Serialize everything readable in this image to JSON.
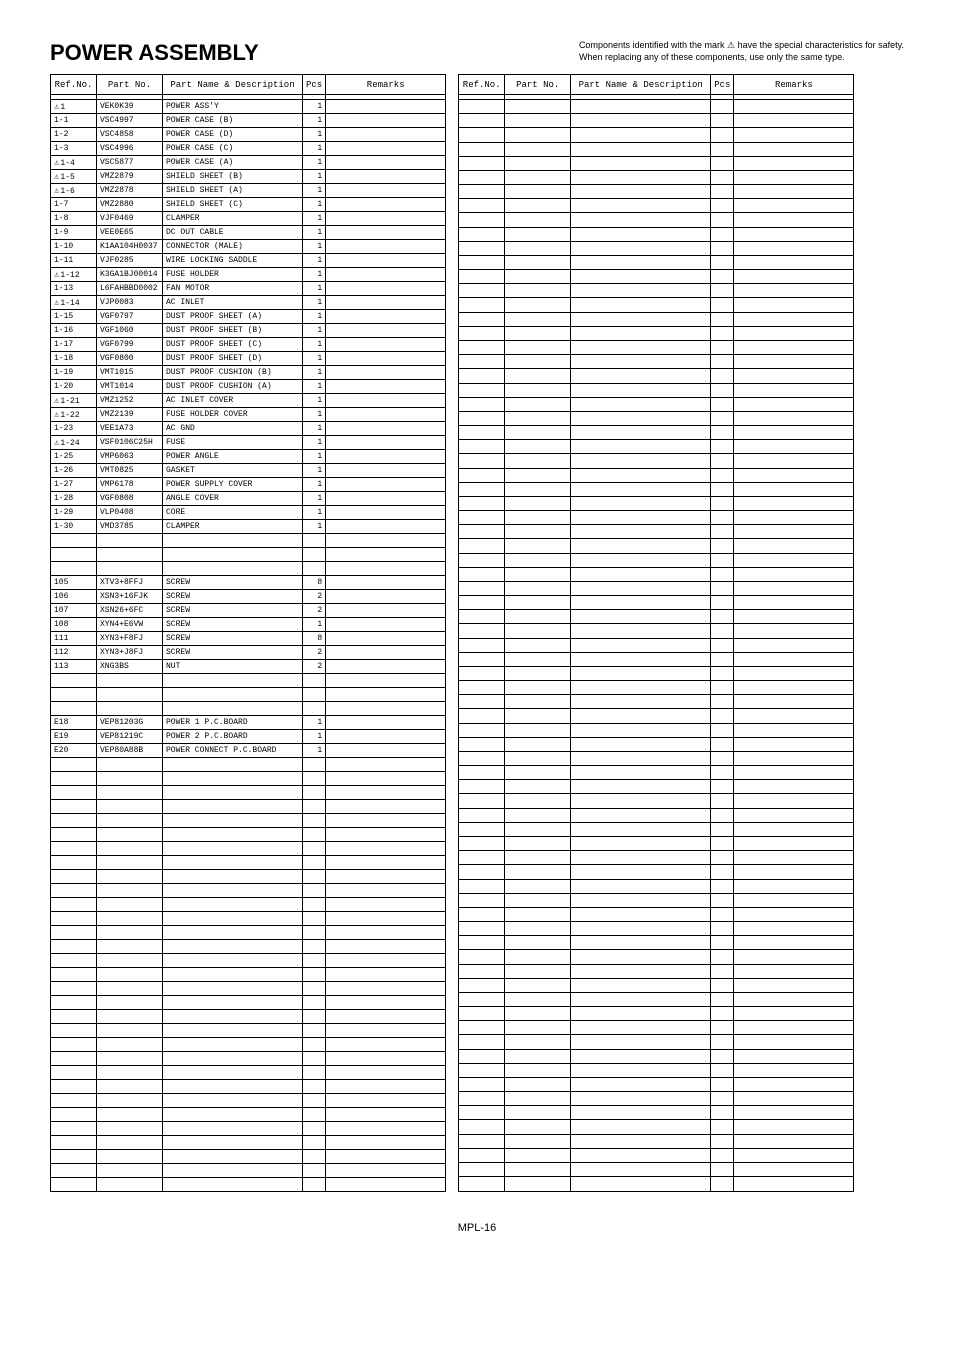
{
  "pageTitle": "POWER ASSEMBLY",
  "noteLine1": "Components identified with the mark ⚠ have the special characteristics for safety.",
  "noteLine2": "When replacing any of these components, use only the same type.",
  "headers": {
    "ref": "Ref.No.",
    "part": "Part No.",
    "desc": "Part Name & Description",
    "pcs": "Pcs",
    "rem": "Remarks"
  },
  "rows": [
    {
      "tri": true,
      "ref": "1",
      "part": "VEK0K39",
      "desc": "POWER ASS'Y",
      "pcs": "1"
    },
    {
      "ref": "1-1",
      "part": "VSC4997",
      "desc": "POWER CASE (B)",
      "pcs": "1"
    },
    {
      "ref": "1-2",
      "part": "VSC4858",
      "desc": "POWER CASE (D)",
      "pcs": "1"
    },
    {
      "ref": "1-3",
      "part": "VSC4996",
      "desc": "POWER CASE (C)",
      "pcs": "1"
    },
    {
      "tri": true,
      "ref": "1-4",
      "part": "VSC5877",
      "desc": "POWER CASE (A)",
      "pcs": "1"
    },
    {
      "tri": true,
      "ref": "1-5",
      "part": "VMZ2879",
      "desc": "SHIELD SHEET (B)",
      "pcs": "1"
    },
    {
      "tri": true,
      "ref": "1-6",
      "part": "VMZ2878",
      "desc": "SHIELD SHEET (A)",
      "pcs": "1"
    },
    {
      "ref": "1-7",
      "part": "VMZ2880",
      "desc": "SHIELD SHEET (C)",
      "pcs": "1"
    },
    {
      "ref": "1-8",
      "part": "VJF0469",
      "desc": "CLAMPER",
      "pcs": "1"
    },
    {
      "ref": "1-9",
      "part": "VEE0E65",
      "desc": "DC OUT CABLE",
      "pcs": "1"
    },
    {
      "ref": "1-10",
      "part": "K1AA104H0037",
      "desc": "CONNECTOR (MALE)",
      "pcs": "1"
    },
    {
      "ref": "1-11",
      "part": "VJF0285",
      "desc": "WIRE LOCKING SADDLE",
      "pcs": "1"
    },
    {
      "tri": true,
      "ref": "1-12",
      "part": "K3GA1BJ00014",
      "desc": "FUSE HOLDER",
      "pcs": "1"
    },
    {
      "ref": "1-13",
      "part": "L6FAHBBD0002",
      "desc": "FAN MOTOR",
      "pcs": "1"
    },
    {
      "tri": true,
      "ref": "1-14",
      "part": "VJP0083",
      "desc": "AC INLET",
      "pcs": "1"
    },
    {
      "ref": "1-15",
      "part": "VGF0797",
      "desc": "DUST PROOF SHEET (A)",
      "pcs": "1"
    },
    {
      "ref": "1-16",
      "part": "VGF1060",
      "desc": "DUST PROOF SHEET (B)",
      "pcs": "1"
    },
    {
      "ref": "1-17",
      "part": "VGF0799",
      "desc": "DUST PROOF SHEET (C)",
      "pcs": "1"
    },
    {
      "ref": "1-18",
      "part": "VGF0800",
      "desc": "DUST PROOF SHEET (D)",
      "pcs": "1"
    },
    {
      "ref": "1-19",
      "part": "VMT1015",
      "desc": "DUST PROOF CUSHION (B)",
      "pcs": "1"
    },
    {
      "ref": "1-20",
      "part": "VMT1014",
      "desc": "DUST PROOF CUSHION (A)",
      "pcs": "1"
    },
    {
      "tri": true,
      "ref": "1-21",
      "part": "VMZ1252",
      "desc": "AC INLET COVER",
      "pcs": "1"
    },
    {
      "tri": true,
      "ref": "1-22",
      "part": "VMZ2139",
      "desc": "FUSE HOLDER COVER",
      "pcs": "1"
    },
    {
      "ref": "1-23",
      "part": "VEE1A73",
      "desc": "AC GND",
      "pcs": "1"
    },
    {
      "tri": true,
      "ref": "1-24",
      "part": "VSF0106C25H",
      "desc": "FUSE",
      "pcs": "1"
    },
    {
      "ref": "1-25",
      "part": "VMP6063",
      "desc": "POWER ANGLE",
      "pcs": "1"
    },
    {
      "ref": "1-26",
      "part": "VMT0825",
      "desc": "GASKET",
      "pcs": "1"
    },
    {
      "ref": "1-27",
      "part": "VMP6178",
      "desc": "POWER SUPPLY COVER",
      "pcs": "1"
    },
    {
      "ref": "1-28",
      "part": "VGF0808",
      "desc": "ANGLE COVER",
      "pcs": "1"
    },
    {
      "ref": "1-29",
      "part": "VLP0408",
      "desc": "CORE",
      "pcs": "1"
    },
    {
      "ref": "1-30",
      "part": "VMD3785",
      "desc": "CLAMPER",
      "pcs": "1"
    },
    {
      "blank": true
    },
    {
      "blank": true
    },
    {
      "blank": true
    },
    {
      "ref": "105",
      "part": "XTV3+8FFJ",
      "desc": "SCREW",
      "pcs": "8"
    },
    {
      "ref": "106",
      "part": "XSN3+16FJK",
      "desc": "SCREW",
      "pcs": "2"
    },
    {
      "ref": "107",
      "part": "XSN26+6FC",
      "desc": "SCREW",
      "pcs": "2"
    },
    {
      "ref": "108",
      "part": "XYN4+E6VW",
      "desc": "SCREW",
      "pcs": "1"
    },
    {
      "ref": "111",
      "part": "XYN3+F8FJ",
      "desc": "SCREW",
      "pcs": "8"
    },
    {
      "ref": "112",
      "part": "XYN3+J8FJ",
      "desc": "SCREW",
      "pcs": "2"
    },
    {
      "ref": "113",
      "part": "XNG3BS",
      "desc": "NUT",
      "pcs": "2"
    },
    {
      "blank": true
    },
    {
      "blank": true
    },
    {
      "blank": true
    },
    {
      "ref": "E18",
      "part": "VEP81203G",
      "desc": "POWER 1 P.C.BOARD",
      "pcs": "1"
    },
    {
      "ref": "E19",
      "part": "VEP81219C",
      "desc": "POWER 2 P.C.BOARD",
      "pcs": "1"
    },
    {
      "ref": "E20",
      "part": "VEP80A88B",
      "desc": "POWER CONNECT P.C.BOARD",
      "pcs": "1"
    },
    {
      "blank": true
    },
    {
      "blank": true
    },
    {
      "blank": true
    },
    {
      "blank": true
    },
    {
      "blank": true
    },
    {
      "blank": true
    },
    {
      "blank": true
    },
    {
      "blank": true
    },
    {
      "blank": true
    },
    {
      "blank": true
    },
    {
      "blank": true
    },
    {
      "blank": true
    },
    {
      "blank": true
    },
    {
      "blank": true
    },
    {
      "blank": true
    },
    {
      "blank": true
    },
    {
      "blank": true
    },
    {
      "blank": true
    },
    {
      "blank": true
    },
    {
      "blank": true
    },
    {
      "blank": true
    },
    {
      "blank": true
    },
    {
      "blank": true
    },
    {
      "blank": true
    },
    {
      "blank": true
    },
    {
      "blank": true
    },
    {
      "blank": true
    },
    {
      "blank": true
    },
    {
      "blank": true
    },
    {
      "blank": true
    },
    {
      "blank": true
    }
  ],
  "rightRowCount": 77,
  "footer": "MPL-16"
}
